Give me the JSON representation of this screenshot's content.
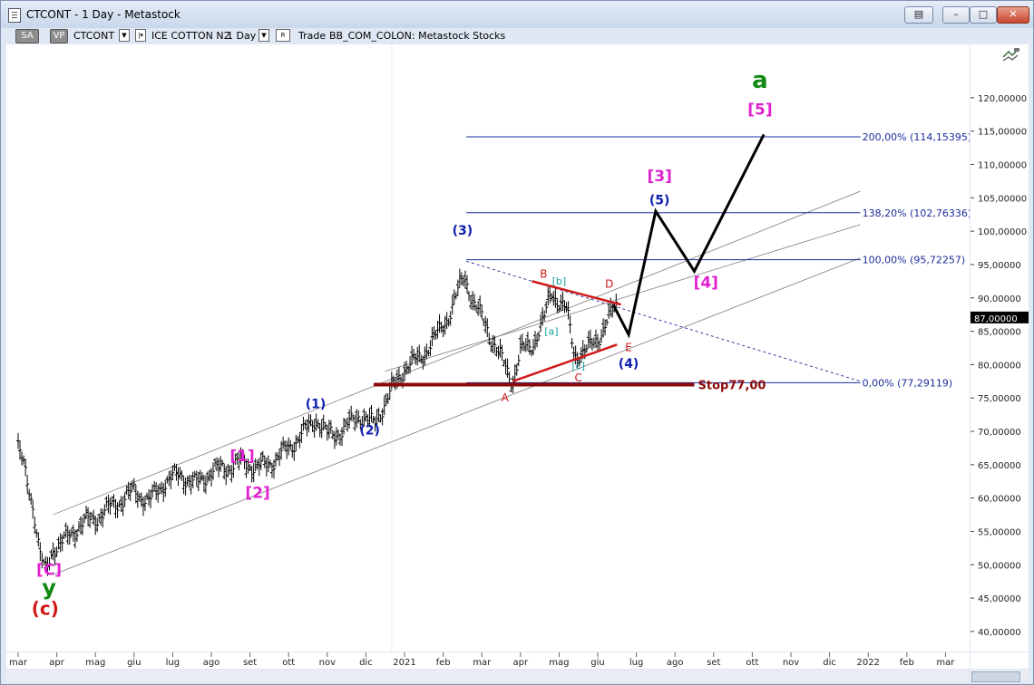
{
  "window": {
    "title": "CTCONT - 1 Day - Metastock",
    "buttons": {
      "restore": "▤",
      "minimize": "–",
      "maximize": "□",
      "close": "✕"
    }
  },
  "toolbar": {
    "sa": "SA",
    "vp": "VP",
    "symbol": "CTCONT",
    "name": "ICE COTTON N2",
    "period": "1 Day",
    "r_button": "R",
    "mode": "Trade",
    "database": "BB_COM_COLON: Metastock  Stocks",
    "icon": "chart-tools-icon"
  },
  "price_axis": {
    "last_price": "87,00000",
    "last_price_value": 87.0
  },
  "chart_data": {
    "type": "bar",
    "title": "",
    "xlabel": "",
    "ylabel": "",
    "ylim": [
      37.0,
      128.0
    ],
    "yticks": [
      {
        "v": 40,
        "label": "40,00000"
      },
      {
        "v": 45,
        "label": "45,00000"
      },
      {
        "v": 50,
        "label": "50,00000"
      },
      {
        "v": 55,
        "label": "55,00000"
      },
      {
        "v": 60,
        "label": "60,00000"
      },
      {
        "v": 65,
        "label": "65,00000"
      },
      {
        "v": 70,
        "label": "70,00000"
      },
      {
        "v": 75,
        "label": "75,00000"
      },
      {
        "v": 80,
        "label": "80,00000"
      },
      {
        "v": 85,
        "label": "85,00000"
      },
      {
        "v": 90,
        "label": "90,00000"
      },
      {
        "v": 95,
        "label": "95,00000"
      },
      {
        "v": 100,
        "label": "100,00000"
      },
      {
        "v": 105,
        "label": "105,00000"
      },
      {
        "v": 110,
        "label": "110,00000"
      },
      {
        "v": 115,
        "label": "115,00000"
      },
      {
        "v": 120,
        "label": "120,00000"
      }
    ],
    "months": [
      {
        "i": 0,
        "label": "mar"
      },
      {
        "i": 1,
        "label": "apr"
      },
      {
        "i": 2,
        "label": "mag"
      },
      {
        "i": 3,
        "label": "giu"
      },
      {
        "i": 4,
        "label": "lug"
      },
      {
        "i": 5,
        "label": "ago"
      },
      {
        "i": 6,
        "label": "set"
      },
      {
        "i": 7,
        "label": "ott"
      },
      {
        "i": 8,
        "label": "nov"
      },
      {
        "i": 9,
        "label": "dic"
      },
      {
        "i": 10,
        "label": "2021"
      },
      {
        "i": 11,
        "label": "feb"
      },
      {
        "i": 12,
        "label": "mar"
      },
      {
        "i": 13,
        "label": "apr"
      },
      {
        "i": 14,
        "label": "mag"
      },
      {
        "i": 15,
        "label": "giu"
      },
      {
        "i": 16,
        "label": "lug"
      },
      {
        "i": 17,
        "label": "ago"
      },
      {
        "i": 18,
        "label": "set"
      },
      {
        "i": 19,
        "label": "ott"
      },
      {
        "i": 20,
        "label": "nov"
      },
      {
        "i": 21,
        "label": "dic"
      },
      {
        "i": 22,
        "label": "2022"
      },
      {
        "i": 23,
        "label": "feb"
      },
      {
        "i": 24,
        "label": "mar"
      }
    ],
    "price_path": [
      [
        0.0,
        67.5
      ],
      [
        0.2,
        63.5
      ],
      [
        0.4,
        58.5
      ],
      [
        0.55,
        52.0
      ],
      [
        0.7,
        48.5
      ],
      [
        0.9,
        52.5
      ],
      [
        1.2,
        53.5
      ],
      [
        1.6,
        56.0
      ],
      [
        2.0,
        57.0
      ],
      [
        2.5,
        59.0
      ],
      [
        3.0,
        61.0
      ],
      [
        3.4,
        59.5
      ],
      [
        3.8,
        62.5
      ],
      [
        4.2,
        63.5
      ],
      [
        4.6,
        62.0
      ],
      [
        5.0,
        64.0
      ],
      [
        5.4,
        64.5
      ],
      [
        5.8,
        65.5
      ],
      [
        6.2,
        64.5
      ],
      [
        6.6,
        65.5
      ],
      [
        7.0,
        67.5
      ],
      [
        7.5,
        70.5
      ],
      [
        7.7,
        72.0
      ],
      [
        8.0,
        69.5
      ],
      [
        8.4,
        70.0
      ],
      [
        8.8,
        72.5
      ],
      [
        9.2,
        71.0
      ],
      [
        9.6,
        75.5
      ],
      [
        10.0,
        79.5
      ],
      [
        10.4,
        81.0
      ],
      [
        10.8,
        84.0
      ],
      [
        11.2,
        88.0
      ],
      [
        11.55,
        93.5
      ],
      [
        11.8,
        89.0
      ],
      [
        12.1,
        86.0
      ],
      [
        12.4,
        82.0
      ],
      [
        12.8,
        77.5
      ],
      [
        13.0,
        82.0
      ],
      [
        13.3,
        83.0
      ],
      [
        13.6,
        86.5
      ],
      [
        13.8,
        91.0
      ],
      [
        14.0,
        89.5
      ],
      [
        14.2,
        88.0
      ],
      [
        14.4,
        81.5
      ],
      [
        14.7,
        82.0
      ],
      [
        15.0,
        84.0
      ],
      [
        15.3,
        87.0
      ],
      [
        15.5,
        89.0
      ]
    ],
    "channel": [
      {
        "x1": 0.9,
        "y1": 57.5,
        "x2": 21.8,
        "y2": 106.0
      },
      {
        "x1": 0.9,
        "y1": 48.5,
        "x2": 21.8,
        "y2": 96.0
      },
      {
        "x1": 9.5,
        "y1": 79.0,
        "x2": 21.8,
        "y2": 101.0
      }
    ],
    "fib_levels": [
      {
        "label": "200,00% (114,15395)",
        "value": 114.15395
      },
      {
        "label": "138,20% (102,76336)",
        "value": 102.76336
      },
      {
        "label": "100,00% (95,72257)",
        "value": 95.72257
      },
      {
        "label": "0,00% (77,29119)",
        "value": 77.29119
      }
    ],
    "triangle": [
      {
        "x1": 13.3,
        "y1": 92.5,
        "x2": 15.6,
        "y2": 89.0
      },
      {
        "x1": 12.8,
        "y1": 77.5,
        "x2": 15.5,
        "y2": 83.0
      }
    ],
    "dashed_projection": {
      "x1": 11.6,
      "y1": 95.5,
      "x2": 21.8,
      "y2": 77.5
    },
    "stop": {
      "label": "Stop77,00",
      "value": 77.0,
      "x1": 9.2,
      "x2": 17.5
    },
    "projection_path": [
      [
        15.4,
        89.0
      ],
      [
        15.8,
        84.5
      ],
      [
        16.5,
        103.0
      ],
      [
        17.5,
        94.0
      ],
      [
        19.3,
        114.5
      ]
    ],
    "wave_labels": [
      {
        "text": "a",
        "x": 19.2,
        "y": 121.5,
        "color": "#108a10",
        "size": 26
      },
      {
        "text": "[5]",
        "x": 19.2,
        "y": 117.5,
        "color": "#e020d0",
        "size": 17
      },
      {
        "text": "[3]",
        "x": 16.6,
        "y": 107.5,
        "color": "#e020d0",
        "size": 17
      },
      {
        "text": "(5)",
        "x": 16.6,
        "y": 104.0,
        "color": "#1020b0",
        "size": 14
      },
      {
        "text": "[4]",
        "x": 17.8,
        "y": 91.5,
        "color": "#e020d0",
        "size": 17
      },
      {
        "text": "(4)",
        "x": 15.8,
        "y": 79.5,
        "color": "#1020b0",
        "size": 14
      },
      {
        "text": "E",
        "x": 15.8,
        "y": 82.0,
        "color": "#d01818",
        "size": 12,
        "plain": true
      },
      {
        "text": "D",
        "x": 15.3,
        "y": 91.5,
        "color": "#d01818",
        "size": 12,
        "plain": true
      },
      {
        "text": "B",
        "x": 13.6,
        "y": 93.0,
        "color": "#d01818",
        "size": 12,
        "plain": true
      },
      {
        "text": "[b]",
        "x": 14.0,
        "y": 92.0,
        "color": "#18a0a0",
        "size": 11,
        "plain": true
      },
      {
        "text": "[a]",
        "x": 13.8,
        "y": 84.5,
        "color": "#18a0a0",
        "size": 11,
        "plain": true
      },
      {
        "text": "[c]",
        "x": 14.5,
        "y": 79.3,
        "color": "#18a0a0",
        "size": 11,
        "plain": true
      },
      {
        "text": "C",
        "x": 14.5,
        "y": 77.5,
        "color": "#d01818",
        "size": 12,
        "plain": true
      },
      {
        "text": "A",
        "x": 12.6,
        "y": 74.5,
        "color": "#d01818",
        "size": 12,
        "plain": true
      },
      {
        "text": "(3)",
        "x": 11.5,
        "y": 99.5,
        "color": "#1020b0",
        "size": 14
      },
      {
        "text": "(1)",
        "x": 7.7,
        "y": 73.5,
        "color": "#1020b0",
        "size": 14
      },
      {
        "text": "(2)",
        "x": 9.1,
        "y": 69.5,
        "color": "#1020b0",
        "size": 14
      },
      {
        "text": "[1]",
        "x": 5.8,
        "y": 65.5,
        "color": "#e020d0",
        "size": 17
      },
      {
        "text": "[2]",
        "x": 6.2,
        "y": 60.0,
        "color": "#e020d0",
        "size": 17
      },
      {
        "text": "[C]",
        "x": 0.8,
        "y": 48.5,
        "color": "#e020d0",
        "size": 17
      },
      {
        "text": "y",
        "x": 0.8,
        "y": 45.5,
        "color": "#108a10",
        "size": 24
      },
      {
        "text": "(c)",
        "x": 0.7,
        "y": 42.5,
        "color": "#d01818",
        "size": 20
      }
    ]
  }
}
